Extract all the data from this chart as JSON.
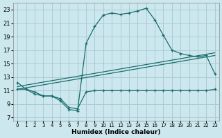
{
  "xlabel": "Humidex (Indice chaleur)",
  "bg_color": "#cce8ee",
  "grid_color": "#aaccd4",
  "line_color": "#1a6b6b",
  "xlim": [
    -0.5,
    23.5
  ],
  "ylim": [
    6.5,
    24
  ],
  "xticks": [
    0,
    1,
    2,
    3,
    4,
    5,
    6,
    7,
    8,
    9,
    10,
    11,
    12,
    13,
    14,
    15,
    16,
    17,
    18,
    19,
    20,
    21,
    22,
    23
  ],
  "yticks": [
    7,
    9,
    11,
    13,
    15,
    17,
    19,
    21,
    23
  ],
  "curve1_x": [
    0,
    1,
    2,
    3,
    4,
    5,
    6,
    7,
    8,
    9,
    10,
    11,
    12,
    13,
    14,
    15,
    16,
    17,
    18,
    19,
    20,
    21,
    22,
    23
  ],
  "curve1_y": [
    12.2,
    11.2,
    10.8,
    10.2,
    10.2,
    9.5,
    8.2,
    8.0,
    18.0,
    20.5,
    22.2,
    22.5,
    22.3,
    22.5,
    22.8,
    23.2,
    21.5,
    19.2,
    17.0,
    16.5,
    16.2,
    16.0,
    16.2,
    13.5
  ],
  "curve2_x": [
    0,
    1,
    2,
    3,
    4,
    5,
    6,
    7,
    8,
    9,
    10,
    11,
    12,
    13,
    14,
    15,
    16,
    17,
    18,
    19,
    20,
    21,
    22,
    23
  ],
  "curve2_y": [
    11.2,
    11.2,
    10.5,
    10.2,
    10.2,
    9.8,
    8.5,
    8.3,
    10.8,
    11.0,
    11.0,
    11.0,
    11.0,
    11.0,
    11.0,
    11.0,
    11.0,
    11.0,
    11.0,
    11.0,
    11.0,
    11.0,
    11.0,
    11.2
  ],
  "trend1_x": [
    0,
    23
  ],
  "trend1_y": [
    11.2,
    16.2
  ],
  "trend2_x": [
    0,
    23
  ],
  "trend2_y": [
    11.6,
    16.6
  ]
}
